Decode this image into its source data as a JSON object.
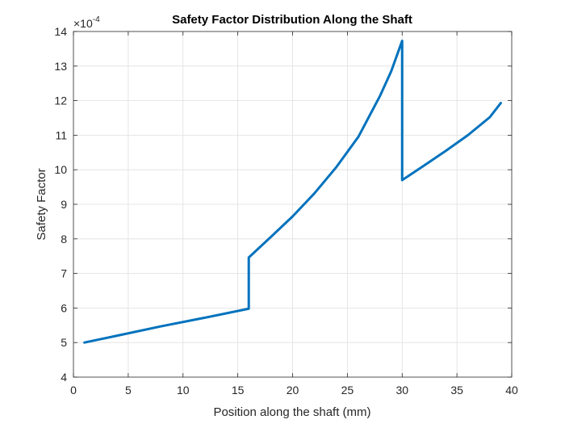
{
  "chart_data": {
    "type": "line",
    "title": "Safety Factor Distribution Along the Shaft",
    "xlabel": "Position along the shaft (mm)",
    "ylabel": "Safety Factor",
    "y_multiplier_text": "×10",
    "y_multiplier_exponent": "-4",
    "xlim": [
      0,
      40
    ],
    "ylim": [
      4,
      14
    ],
    "x_ticks": [
      0,
      5,
      10,
      15,
      20,
      25,
      30,
      35,
      40
    ],
    "y_ticks": [
      4,
      5,
      6,
      7,
      8,
      9,
      10,
      11,
      12,
      13,
      14
    ],
    "grid": true,
    "line_color": "#0072BD",
    "series": [
      {
        "x": [
          1,
          4,
          8,
          12,
          16,
          16,
          18,
          20,
          22,
          24,
          26,
          28,
          29,
          30,
          30,
          32,
          34,
          36,
          38,
          39
        ],
        "y": [
          5.0,
          5.2,
          5.47,
          5.72,
          5.98,
          7.46,
          8.05,
          8.65,
          9.32,
          10.08,
          10.95,
          12.15,
          12.85,
          13.73,
          9.7,
          10.12,
          10.55,
          11.0,
          11.52,
          11.93
        ]
      }
    ]
  }
}
